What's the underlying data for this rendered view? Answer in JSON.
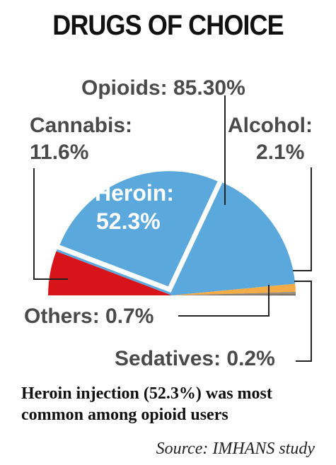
{
  "chart_data": {
    "type": "pie",
    "title": "DRUGS OF CHOICE",
    "slices": [
      {
        "name": "Cannabis",
        "label_lines": [
          "Cannabis:",
          "11.6%"
        ],
        "value": 11.6,
        "color": "#d7141a"
      },
      {
        "name": "Opioids",
        "label_lines": [
          "Opioids: 85.30%"
        ],
        "value": 85.3,
        "color": "#5aa8dc"
      },
      {
        "name": "Heroin",
        "label_lines": [
          "Heroin:",
          "52.3%"
        ],
        "value": 52.3,
        "color": "#5aa8dc",
        "exploded": true
      },
      {
        "name": "Alcohol",
        "label_lines": [
          "Alcohol:",
          "2.1%"
        ],
        "value": 2.1,
        "color": "#f4ac47"
      },
      {
        "name": "Others",
        "label_lines": [
          "Others: 0.7%"
        ],
        "value": 0.7,
        "color": "#9a8c7c"
      },
      {
        "name": "Sedatives",
        "label_lines": [
          "Sedatives: 0.2%"
        ],
        "value": 0.2,
        "color": "#4a4540"
      }
    ],
    "note": "Heroin injection (52.3%) was most common among opioid users",
    "source": "Source: IMHANS study"
  }
}
